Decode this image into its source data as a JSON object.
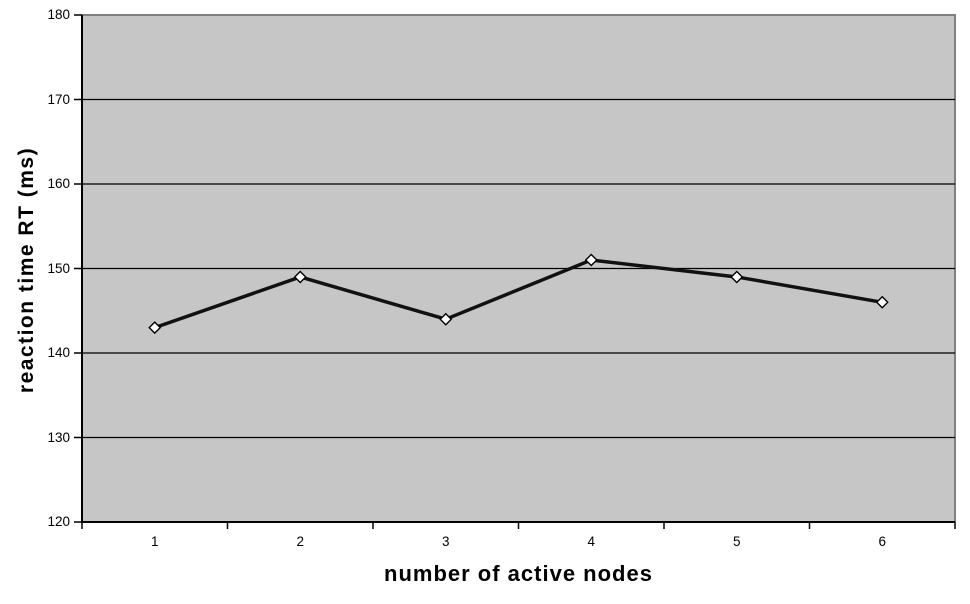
{
  "chart_data": {
    "type": "line",
    "xlabel": "number of active nodes",
    "ylabel": "reaction time RT (ms)",
    "categories": [
      "1",
      "2",
      "3",
      "4",
      "5",
      "6"
    ],
    "values": [
      143,
      149,
      144,
      151,
      149,
      146
    ],
    "yticks": [
      120,
      130,
      140,
      150,
      160,
      170,
      180
    ],
    "ylim": [
      120,
      180
    ],
    "grid": "horizontal",
    "legend": "none",
    "marker": "diamond",
    "colors": {
      "page_bg": "#ffffff",
      "plot_bg": "#c6c6c6",
      "plot_border": "#808080",
      "gridline": "#000000",
      "axis": "#000000",
      "line": "#111111",
      "marker_fill": "#ffffff",
      "marker_stroke": "#000000",
      "text": "#000000"
    }
  }
}
